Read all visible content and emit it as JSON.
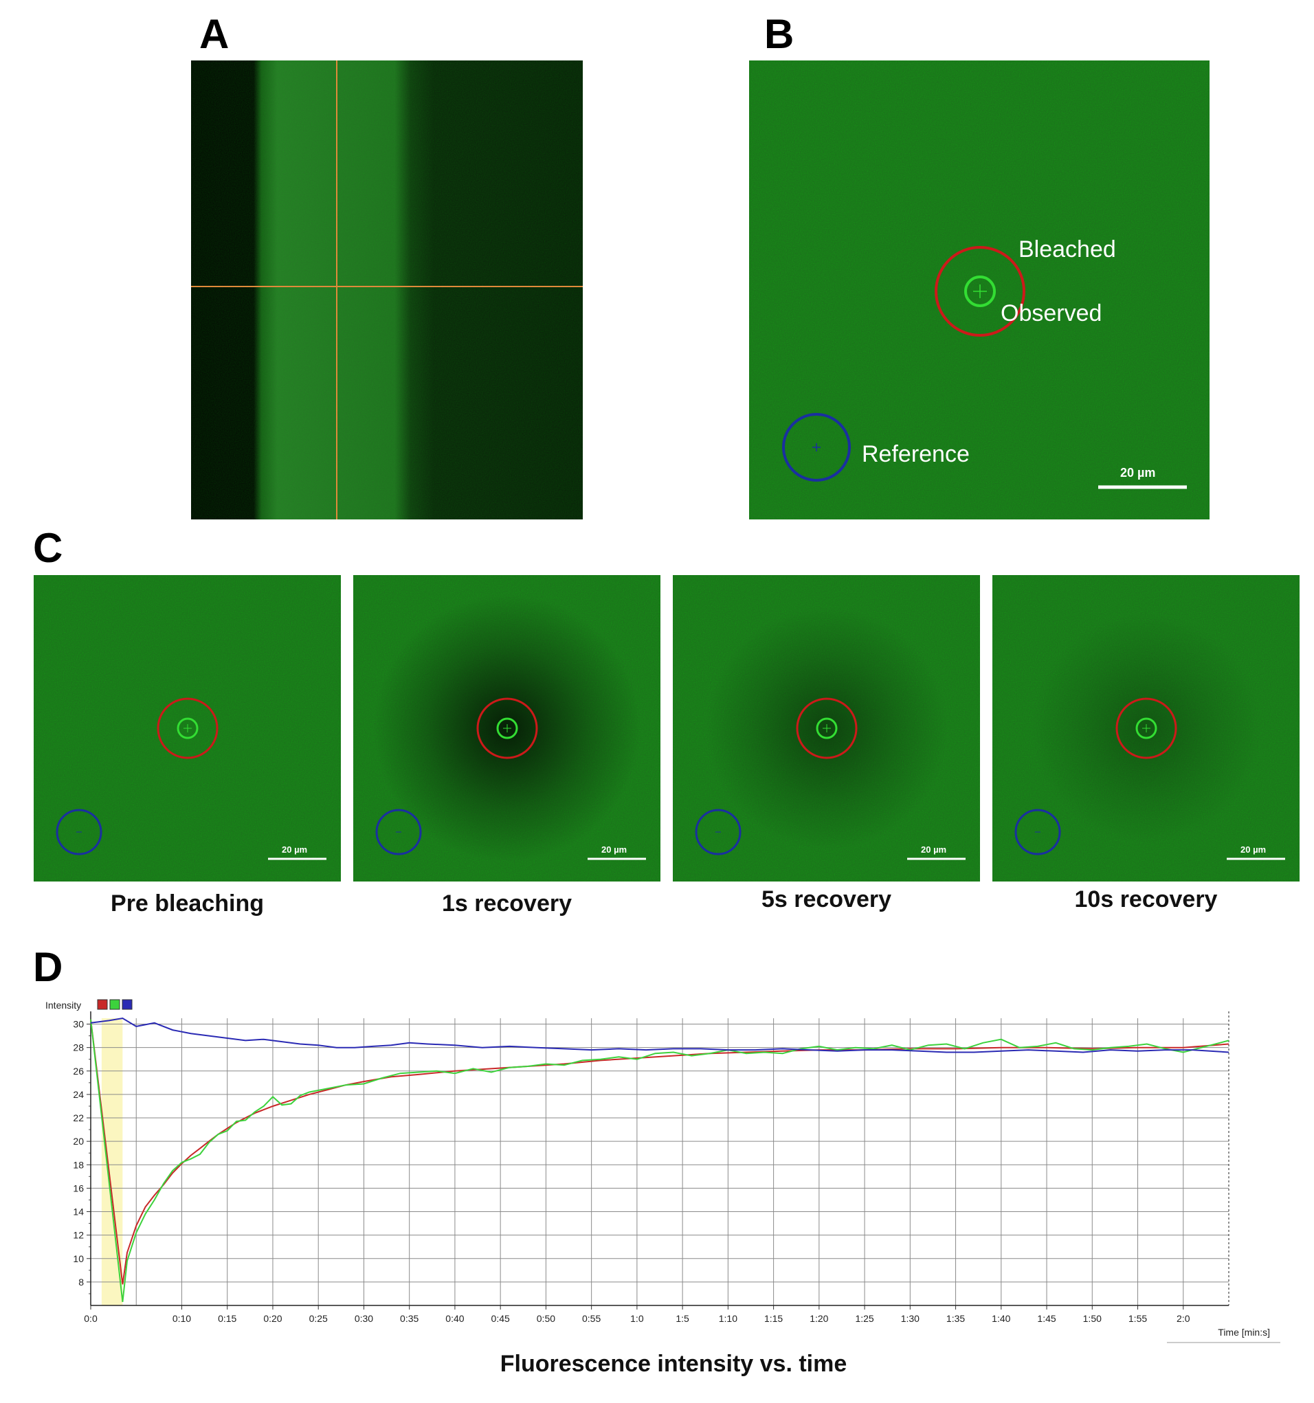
{
  "figure": {
    "panel_a": {
      "letter": "A"
    },
    "panel_b": {
      "letter": "B",
      "labels": {
        "bleached": "Bleached",
        "observed": "Observed",
        "reference": "Reference"
      },
      "scale_bar": "20 µm"
    },
    "panel_c": {
      "letter": "C",
      "frames": [
        {
          "caption": "Pre bleaching",
          "scale_bar": "20 µm",
          "bleach_depth": 0.0
        },
        {
          "caption": "1s recovery",
          "scale_bar": "20 µm",
          "bleach_depth": 0.75
        },
        {
          "caption": "5s recovery",
          "scale_bar": "20 µm",
          "bleach_depth": 0.45
        },
        {
          "caption": "10s recovery",
          "scale_bar": "20 µm",
          "bleach_depth": 0.3
        }
      ]
    },
    "panel_d": {
      "letter": "D",
      "caption": "Fluorescence intensity vs. time"
    },
    "colors": {
      "red_roi": "#cc1a1a",
      "green_roi": "#33dd33",
      "blue_roi": "#1a2fa0",
      "crosshair": "#e08a3a"
    }
  },
  "chart_data": {
    "type": "line",
    "title": "",
    "ylabel": "Intensity",
    "xlabel": "Time [min:s]",
    "ylim": [
      6,
      30.5
    ],
    "xlim": [
      0,
      125
    ],
    "yticks": [
      8,
      10,
      12,
      14,
      16,
      18,
      20,
      22,
      24,
      26,
      28,
      30
    ],
    "xticks": [
      {
        "v": 0,
        "label": "0:0"
      },
      {
        "v": 10,
        "label": "0:10"
      },
      {
        "v": 15,
        "label": "0:15"
      },
      {
        "v": 20,
        "label": "0:20"
      },
      {
        "v": 25,
        "label": "0:25"
      },
      {
        "v": 30,
        "label": "0:30"
      },
      {
        "v": 35,
        "label": "0:35"
      },
      {
        "v": 40,
        "label": "0:40"
      },
      {
        "v": 45,
        "label": "0:45"
      },
      {
        "v": 50,
        "label": "0:50"
      },
      {
        "v": 55,
        "label": "0:55"
      },
      {
        "v": 60,
        "label": "1:0"
      },
      {
        "v": 65,
        "label": "1:5"
      },
      {
        "v": 70,
        "label": "1:10"
      },
      {
        "v": 75,
        "label": "1:15"
      },
      {
        "v": 80,
        "label": "1:20"
      },
      {
        "v": 85,
        "label": "1:25"
      },
      {
        "v": 90,
        "label": "1:30"
      },
      {
        "v": 95,
        "label": "1:35"
      },
      {
        "v": 100,
        "label": "1:40"
      },
      {
        "v": 105,
        "label": "1:45"
      },
      {
        "v": 110,
        "label": "1:50"
      },
      {
        "v": 115,
        "label": "1:55"
      },
      {
        "v": 120,
        "label": "2:0"
      }
    ],
    "bleach_window": [
      1.2,
      3.5
    ],
    "grid": true,
    "legend": "top-left (colored boxes next to Intensity)",
    "series": [
      {
        "color": "#c82828",
        "x": [
          0,
          3.5,
          4,
          5,
          6,
          7,
          8,
          9,
          10,
          11,
          12,
          13,
          14,
          15,
          16,
          17,
          18,
          19,
          20,
          22,
          24,
          26,
          28,
          30,
          33,
          36,
          40,
          44,
          48,
          52,
          56,
          60,
          64,
          68,
          72,
          76,
          80,
          85,
          90,
          95,
          100,
          105,
          110,
          115,
          120,
          125
        ],
        "y": [
          30.4,
          7.8,
          10.5,
          12.8,
          14.4,
          15.4,
          16.3,
          17.3,
          18.1,
          18.8,
          19.4,
          20.0,
          20.6,
          21.1,
          21.6,
          22.0,
          22.4,
          22.7,
          23.0,
          23.5,
          24.0,
          24.4,
          24.8,
          25.1,
          25.5,
          25.7,
          26.0,
          26.2,
          26.4,
          26.6,
          26.9,
          27.1,
          27.3,
          27.5,
          27.6,
          27.7,
          27.8,
          27.8,
          27.9,
          27.9,
          28.0,
          28.0,
          27.9,
          28.0,
          28.0,
          28.3
        ]
      },
      {
        "color": "#3cd23c",
        "x": [
          0,
          3.5,
          4,
          5,
          6,
          7,
          8,
          9,
          10,
          11,
          12,
          13,
          14,
          15,
          16,
          17,
          18,
          19,
          20,
          21,
          22,
          23,
          24,
          26,
          28,
          30,
          32,
          34,
          36,
          38,
          40,
          42,
          44,
          46,
          48,
          50,
          52,
          54,
          56,
          58,
          60,
          62,
          64,
          66,
          68,
          70,
          72,
          74,
          76,
          78,
          80,
          82,
          84,
          86,
          88,
          90,
          92,
          94,
          96,
          98,
          100,
          102,
          104,
          106,
          108,
          110,
          112,
          114,
          116,
          118,
          120,
          122,
          125
        ],
        "y": [
          30.4,
          6.3,
          9.8,
          12.2,
          13.8,
          15.0,
          16.4,
          17.5,
          18.2,
          18.5,
          18.9,
          19.9,
          20.6,
          20.9,
          21.7,
          21.8,
          22.5,
          23.0,
          23.8,
          23.1,
          23.2,
          23.9,
          24.2,
          24.5,
          24.8,
          24.9,
          25.4,
          25.8,
          25.9,
          26.0,
          25.8,
          26.2,
          25.9,
          26.3,
          26.4,
          26.6,
          26.5,
          26.9,
          27.0,
          27.2,
          27.0,
          27.5,
          27.6,
          27.3,
          27.5,
          27.8,
          27.5,
          27.6,
          27.5,
          27.9,
          28.1,
          27.8,
          28.0,
          27.9,
          28.2,
          27.8,
          28.2,
          28.3,
          27.9,
          28.4,
          28.7,
          28.0,
          28.1,
          28.4,
          27.9,
          27.8,
          28.0,
          28.1,
          28.3,
          27.9,
          27.6,
          28.0,
          28.6
        ]
      },
      {
        "color": "#2a2ab4",
        "x": [
          0,
          2,
          3.5,
          5,
          7,
          9,
          11,
          13,
          15,
          17,
          19,
          21,
          23,
          25,
          27,
          29,
          31,
          33,
          35,
          37,
          40,
          43,
          46,
          49,
          52,
          55,
          58,
          61,
          64,
          67,
          70,
          73,
          76,
          79,
          82,
          85,
          88,
          91,
          94,
          97,
          100,
          103,
          106,
          109,
          112,
          115,
          118,
          121,
          125
        ],
        "y": [
          30.1,
          30.3,
          30.5,
          29.8,
          30.1,
          29.5,
          29.2,
          29.0,
          28.8,
          28.6,
          28.7,
          28.5,
          28.3,
          28.2,
          28.0,
          28.0,
          28.1,
          28.2,
          28.4,
          28.3,
          28.2,
          28.0,
          28.1,
          28.0,
          27.9,
          27.8,
          27.9,
          27.8,
          27.9,
          27.9,
          27.8,
          27.8,
          27.9,
          27.8,
          27.7,
          27.8,
          27.8,
          27.7,
          27.6,
          27.6,
          27.7,
          27.8,
          27.7,
          27.6,
          27.8,
          27.7,
          27.8,
          27.8,
          27.6
        ]
      }
    ]
  }
}
